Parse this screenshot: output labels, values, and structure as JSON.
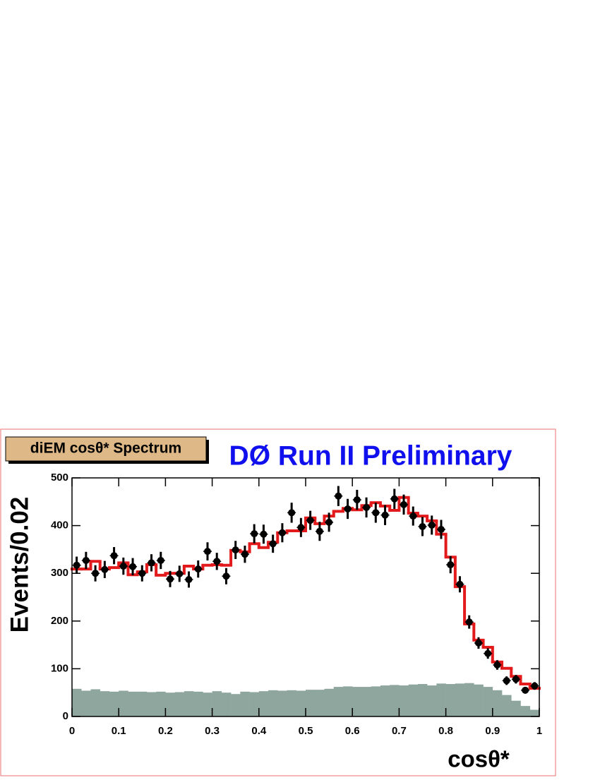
{
  "chart_data": {
    "type": "histogram",
    "title": "diEM cosθ* Spectrum",
    "annotation": "DØ Run II Preliminary",
    "x_label": "cosθ*",
    "y_label": "Events/0.02",
    "xlim": [
      0,
      1
    ],
    "ylim": [
      0,
      500
    ],
    "xticks": [
      0,
      0.1,
      0.2,
      0.3,
      0.4,
      0.5,
      0.6,
      0.7,
      0.8,
      0.9,
      1
    ],
    "yticks": [
      0,
      100,
      200,
      300,
      400,
      500
    ],
    "bins": [
      0,
      0.02,
      0.04,
      0.06,
      0.08,
      0.1,
      0.12,
      0.14,
      0.16,
      0.18,
      0.2,
      0.22,
      0.24,
      0.26,
      0.28,
      0.3,
      0.32,
      0.34,
      0.36,
      0.38,
      0.4,
      0.42,
      0.44,
      0.46,
      0.48,
      0.5,
      0.52,
      0.54,
      0.56,
      0.58,
      0.6,
      0.62,
      0.64,
      0.66,
      0.68,
      0.7,
      0.72,
      0.74,
      0.76,
      0.78,
      0.8,
      0.82,
      0.84,
      0.86,
      0.88,
      0.9,
      0.92,
      0.94,
      0.96,
      0.98,
      1
    ],
    "series": [
      {
        "style": "filled",
        "color": "#8fa69f",
        "values": [
          58,
          54,
          57,
          53,
          52,
          54,
          52,
          52,
          51,
          52,
          50,
          51,
          53,
          52,
          50,
          53,
          50,
          47,
          52,
          51,
          53,
          55,
          54,
          55,
          54,
          56,
          56,
          58,
          62,
          63,
          62,
          62,
          63,
          65,
          66,
          65,
          67,
          68,
          65,
          69,
          68,
          69,
          70,
          67,
          62,
          55,
          45,
          33,
          22,
          14
        ]
      },
      {
        "style": "step",
        "color": "#e31a1c",
        "values": [
          309,
          309,
          325,
          309,
          312,
          322,
          297,
          303,
          318,
          296,
          300,
          300,
          315,
          309,
          317,
          318,
          317,
          348,
          345,
          362,
          354,
          365,
          385,
          389,
          389,
          416,
          404,
          420,
          430,
          436,
          433,
          442,
          448,
          441,
          432,
          459,
          426,
          420,
          410,
          382,
          334,
          272,
          194,
          160,
          145,
          114,
          101,
          84,
          68,
          59
        ]
      }
    ],
    "points": {
      "color": "#000000",
      "values": [
        317,
        327,
        300,
        308,
        337,
        315,
        314,
        300,
        322,
        327,
        288,
        299,
        287,
        309,
        346,
        325,
        294,
        349,
        340,
        383,
        382,
        362,
        385,
        427,
        396,
        411,
        388,
        407,
        462,
        435,
        454,
        438,
        427,
        422,
        456,
        444,
        420,
        398,
        401,
        392,
        318,
        277,
        198,
        154,
        132,
        108,
        75,
        78,
        55,
        64
      ],
      "errors": [
        18,
        18,
        17,
        18,
        18,
        18,
        18,
        17,
        18,
        18,
        17,
        17,
        17,
        18,
        19,
        18,
        17,
        19,
        18,
        20,
        20,
        19,
        20,
        21,
        20,
        20,
        20,
        20,
        21,
        21,
        21,
        21,
        21,
        21,
        21,
        21,
        20,
        20,
        20,
        20,
        18,
        17,
        14,
        12,
        11,
        10,
        9,
        9,
        7,
        8
      ]
    }
  }
}
